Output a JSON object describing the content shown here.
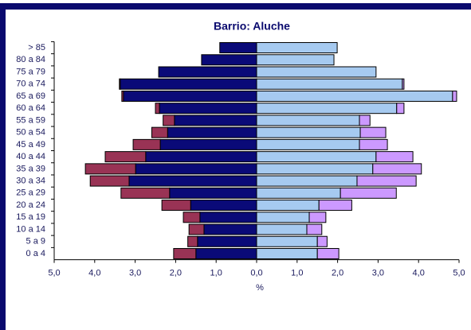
{
  "chart_data": {
    "type": "pyramid",
    "title": "Barrio: Aluche",
    "x_label": "%",
    "categories": [
      "> 85",
      "80 a 84",
      "75 a 79",
      "70 a 74",
      "65 a 69",
      "60 a 64",
      "55 a 59",
      "50 a 54",
      "45 a 49",
      "40 a 44",
      "35 a 39",
      "30 a 34",
      "25 a 29",
      "20 a 24",
      "15 a 19",
      "10 a 14",
      "5 a 9",
      "0 a 4"
    ],
    "series": [
      {
        "color": "#0a0a78",
        "values": [
          -0.91,
          -1.36,
          -2.42,
          -3.37,
          -3.29,
          -2.4,
          -2.03,
          -2.2,
          -2.38,
          -2.74,
          -2.99,
          -3.15,
          -2.15,
          -1.63,
          -1.4,
          -1.3,
          -1.46,
          -1.5
        ]
      },
      {
        "color": "#993355",
        "values": [
          0,
          0,
          0,
          -0.02,
          -0.04,
          -0.1,
          -0.28,
          -0.39,
          -0.67,
          -1.0,
          -1.24,
          -0.96,
          -1.2,
          -0.71,
          -0.41,
          -0.37,
          -0.24,
          -0.55
        ]
      },
      {
        "color": "#a6caf0",
        "values": [
          1.99,
          1.91,
          2.95,
          3.6,
          4.84,
          3.46,
          2.54,
          2.56,
          2.54,
          2.95,
          2.87,
          2.48,
          2.07,
          1.54,
          1.3,
          1.24,
          1.5,
          1.5
        ]
      },
      {
        "color": "#cc99ff",
        "values": [
          0,
          0,
          0,
          0.04,
          0.1,
          0.18,
          0.26,
          0.63,
          0.69,
          0.91,
          1.2,
          1.46,
          1.38,
          0.81,
          0.41,
          0.37,
          0.24,
          0.53
        ]
      }
    ],
    "stacks": [
      [
        0,
        1
      ],
      [
        2,
        3
      ]
    ],
    "xlim": [
      -5,
      5
    ],
    "xticks": [
      {
        "value": -5,
        "label": "5,0"
      },
      {
        "value": -4,
        "label": "4,0"
      },
      {
        "value": -3,
        "label": "3,0"
      },
      {
        "value": -2,
        "label": "2,0"
      },
      {
        "value": -1,
        "label": "1,0"
      },
      {
        "value": 0,
        "label": "0,0"
      },
      {
        "value": 1,
        "label": "1,0"
      },
      {
        "value": 2,
        "label": "2,0"
      },
      {
        "value": 3,
        "label": "3,0"
      },
      {
        "value": 4,
        "label": "4,0"
      },
      {
        "value": 5,
        "label": "5,0"
      }
    ]
  }
}
